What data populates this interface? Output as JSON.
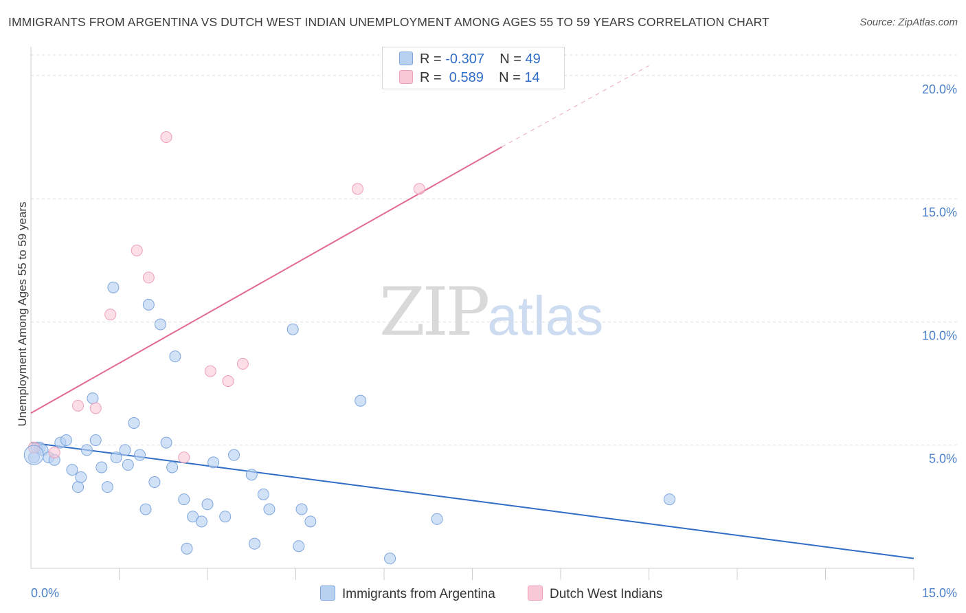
{
  "header": {
    "title": "IMMIGRANTS FROM ARGENTINA VS DUTCH WEST INDIAN UNEMPLOYMENT AMONG AGES 55 TO 59 YEARS CORRELATION CHART",
    "source": "Source: ZipAtlas.com"
  },
  "watermark": {
    "zip": "ZIP",
    "atlas": "atlas"
  },
  "legend": {
    "rows": [
      {
        "r_label": "R = ",
        "r_value": "-0.307",
        "n_label": "N = ",
        "n_value": "49"
      },
      {
        "r_label": "R = ",
        "r_value": " 0.589",
        "n_label": "N = ",
        "n_value": "14"
      }
    ]
  },
  "bottom_legend": {
    "series1": "Immigrants from Argentina",
    "series2": "Dutch West Indians"
  },
  "colors": {
    "blue_fill": "#b9d1f1",
    "blue_stroke": "#7ea6dd",
    "blue_line": "#2f6dc6",
    "pink_fill": "#f8c8d6",
    "pink_stroke": "#eea0b9",
    "pink_line": "#e26a92",
    "grid": "#dddddd",
    "tick_text": "#4a7fc7"
  },
  "chart_data": {
    "type": "scatter",
    "title": "IMMIGRANTS FROM ARGENTINA VS DUTCH WEST INDIAN UNEMPLOYMENT AMONG AGES 55 TO 59 YEARS CORRELATION CHART",
    "xlabel": "",
    "ylabel": "Unemployment Among Ages 55 to 59 years",
    "xlim": [
      0,
      15
    ],
    "ylim": [
      0,
      20
    ],
    "x_tick_labels": [
      "0.0%",
      "15.0%"
    ],
    "y_ticks": [
      5,
      10,
      15,
      20
    ],
    "y_tick_labels": [
      "5.0%",
      "10.0%",
      "15.0%",
      "20.0%"
    ],
    "grid": true,
    "legend_position": "top-center",
    "series": [
      {
        "name": "Immigrants from Argentina",
        "r": -0.307,
        "n": 49,
        "trend": {
          "x": [
            0,
            15
          ],
          "y": [
            5.1,
            0.4
          ]
        },
        "points": [
          [
            0.05,
            4.5
          ],
          [
            0.1,
            4.9
          ],
          [
            0.15,
            4.9
          ],
          [
            0.2,
            4.8
          ],
          [
            0.3,
            4.5
          ],
          [
            0.4,
            4.4
          ],
          [
            0.5,
            5.1
          ],
          [
            0.6,
            5.2
          ],
          [
            0.7,
            4.0
          ],
          [
            0.8,
            3.3
          ],
          [
            0.85,
            3.7
          ],
          [
            0.95,
            4.8
          ],
          [
            1.05,
            6.9
          ],
          [
            1.1,
            5.2
          ],
          [
            1.2,
            4.1
          ],
          [
            1.3,
            3.3
          ],
          [
            1.4,
            11.4
          ],
          [
            1.45,
            4.5
          ],
          [
            1.6,
            4.8
          ],
          [
            1.65,
            4.2
          ],
          [
            1.75,
            5.9
          ],
          [
            1.85,
            4.6
          ],
          [
            1.95,
            2.4
          ],
          [
            2.0,
            10.7
          ],
          [
            2.1,
            3.5
          ],
          [
            2.2,
            9.9
          ],
          [
            2.3,
            5.1
          ],
          [
            2.4,
            4.1
          ],
          [
            2.45,
            8.6
          ],
          [
            2.6,
            2.8
          ],
          [
            2.65,
            0.8
          ],
          [
            2.75,
            2.1
          ],
          [
            2.9,
            1.9
          ],
          [
            3.0,
            2.6
          ],
          [
            3.1,
            4.3
          ],
          [
            3.3,
            2.1
          ],
          [
            3.45,
            4.6
          ],
          [
            3.75,
            3.8
          ],
          [
            3.8,
            1.0
          ],
          [
            3.95,
            3.0
          ],
          [
            4.05,
            2.4
          ],
          [
            4.45,
            9.7
          ],
          [
            4.55,
            0.9
          ],
          [
            4.6,
            2.4
          ],
          [
            4.75,
            1.9
          ],
          [
            5.6,
            6.8
          ],
          [
            6.1,
            0.4
          ],
          [
            6.9,
            2.0
          ],
          [
            10.85,
            2.8
          ]
        ]
      },
      {
        "name": "Dutch West Indians",
        "r": 0.589,
        "n": 14,
        "trend": {
          "x": [
            0,
            8
          ],
          "y": [
            6.3,
            17.1
          ],
          "dashed_to": {
            "x": 10.5,
            "y": 20.4
          }
        },
        "points": [
          [
            0.05,
            4.9
          ],
          [
            0.4,
            4.7
          ],
          [
            0.8,
            6.6
          ],
          [
            1.1,
            6.5
          ],
          [
            1.35,
            10.3
          ],
          [
            1.8,
            12.9
          ],
          [
            2.0,
            11.8
          ],
          [
            2.3,
            17.5
          ],
          [
            2.6,
            4.5
          ],
          [
            3.05,
            8.0
          ],
          [
            3.35,
            7.6
          ],
          [
            3.6,
            8.3
          ],
          [
            5.55,
            15.4
          ],
          [
            6.6,
            15.4
          ]
        ]
      }
    ]
  }
}
